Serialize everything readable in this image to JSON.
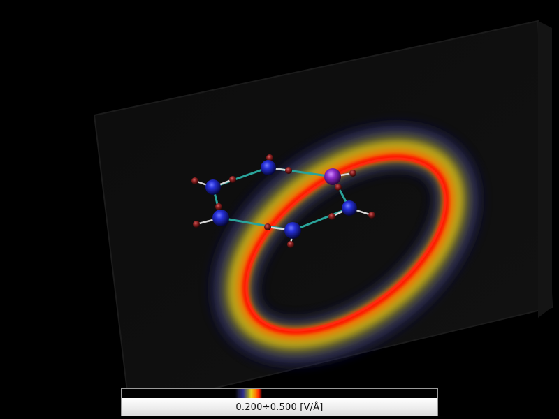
{
  "viewer": {
    "background_color": "#000000",
    "field_colormap": [
      "#2c2c8c",
      "#e8d21a",
      "#ff7a00",
      "#ff1a00"
    ]
  },
  "colorbar": {
    "label": "0.200÷0.500 [V/Å]"
  },
  "molecule": {
    "ring_atom_color": "#1f22c8",
    "special_atom_color": "#8a2bc8",
    "hydrogen_color": "#8a2020",
    "bond_color": "#2aa39a"
  }
}
